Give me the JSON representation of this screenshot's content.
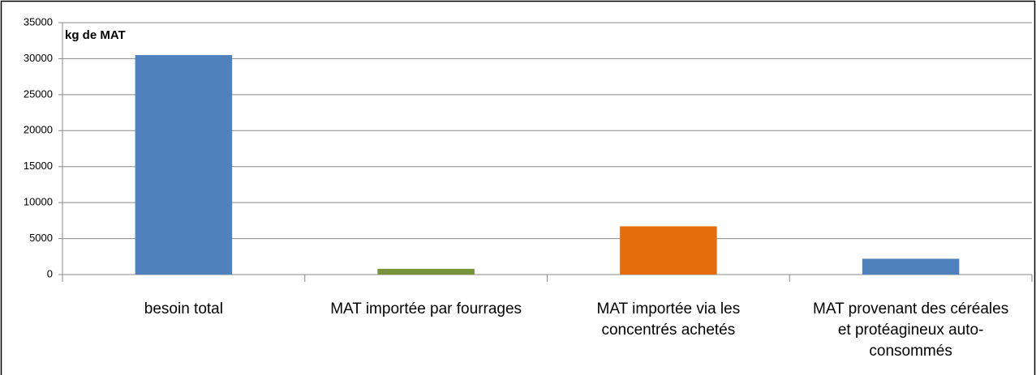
{
  "chart_data": {
    "type": "bar",
    "ylabel": "kg de MAT",
    "categories": [
      "besoin total",
      "MAT importée par fourrages",
      "MAT importée via les concentrés achetés",
      "MAT provenant des céréales et protéagineux auto-consommés"
    ],
    "values": [
      30500,
      800,
      6700,
      2200
    ],
    "colors": [
      "#4f81bd",
      "#77933c",
      "#e46c0a",
      "#4f81bd"
    ],
    "ylim": [
      0,
      35000
    ],
    "yticks": [
      0,
      5000,
      10000,
      15000,
      20000,
      25000,
      30000,
      35000
    ],
    "grid": true
  }
}
